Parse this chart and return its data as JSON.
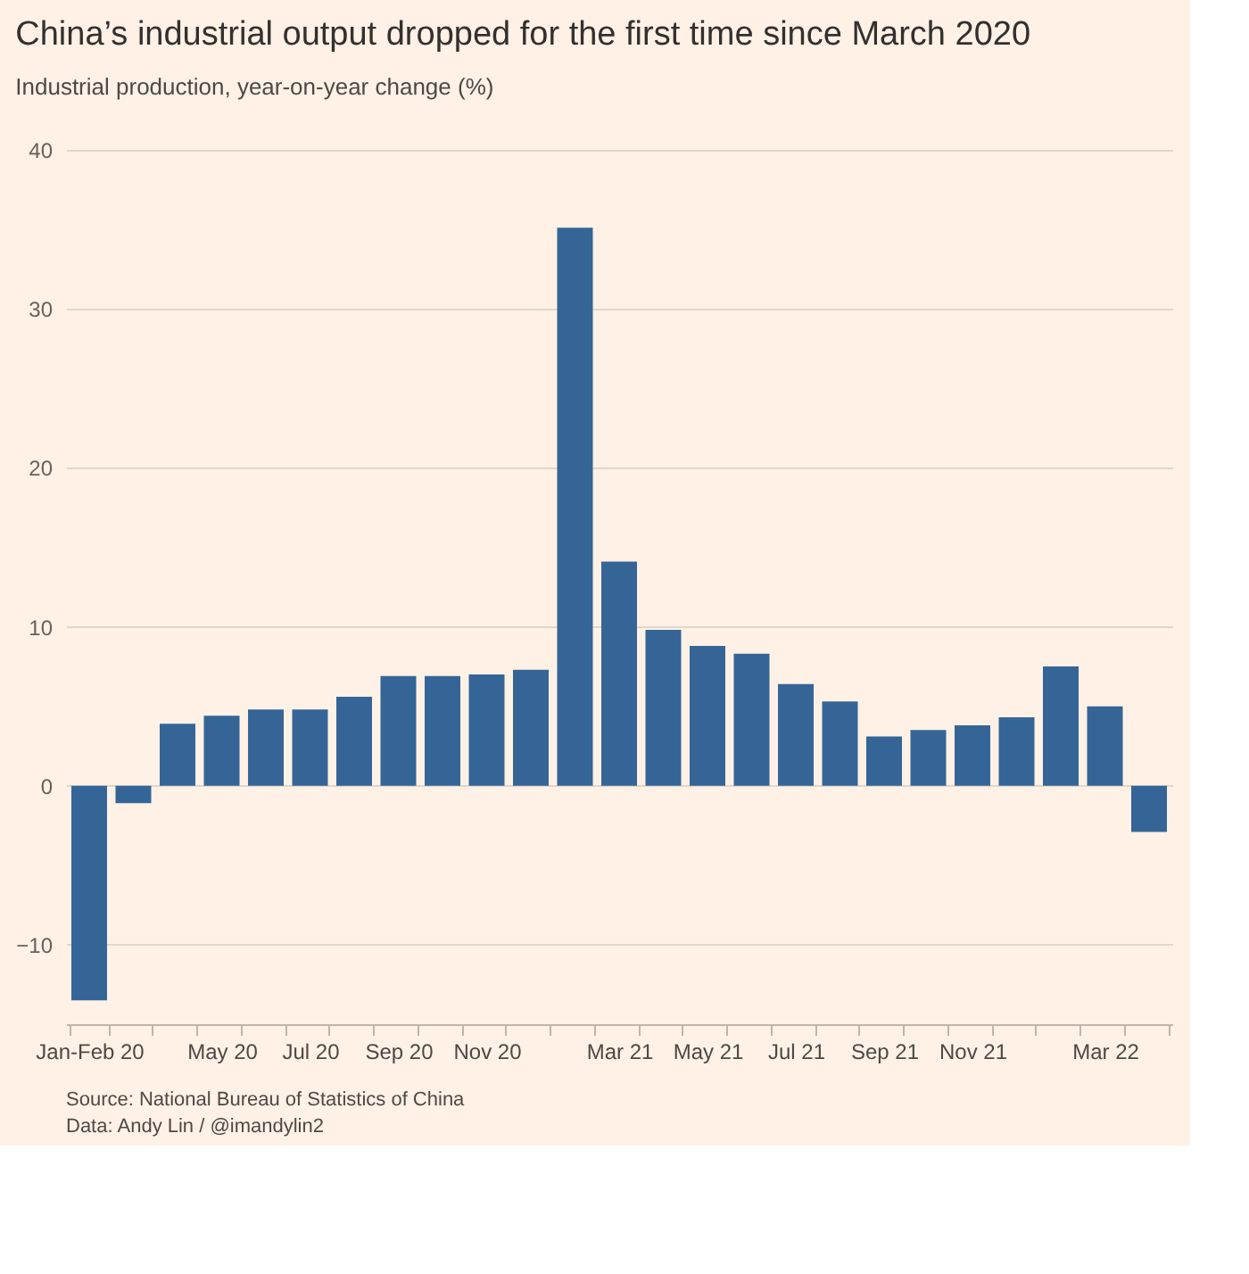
{
  "chart_data": {
    "type": "bar",
    "title": "China’s industrial output dropped for the first time since March 2020",
    "subtitle": "Industrial production, year-on-year change (%)",
    "categories": [
      "Jan-Feb 20",
      null,
      null,
      "May 20",
      null,
      "Jul 20",
      null,
      "Sep 20",
      null,
      "Nov 20",
      null,
      null,
      "Mar 21",
      null,
      "May 21",
      null,
      "Jul 21",
      null,
      "Sep 21",
      null,
      "Nov 21",
      null,
      null,
      "Mar 22",
      null
    ],
    "values": [
      -13.5,
      -1.1,
      3.9,
      4.4,
      4.8,
      4.8,
      5.6,
      6.9,
      6.9,
      7.0,
      7.3,
      35.1,
      14.1,
      9.8,
      8.8,
      8.3,
      6.4,
      5.3,
      3.1,
      3.5,
      3.8,
      4.3,
      7.5,
      5.0,
      -2.9
    ],
    "color": "#356597",
    "ylim": [
      -15,
      40
    ],
    "yticks": [
      -10,
      0,
      10,
      20,
      30,
      40
    ],
    "grid": "y",
    "annotations": [
      "Source: National Bureau of Statistics of China",
      "Data: Andy Lin / @imandylin2"
    ]
  }
}
